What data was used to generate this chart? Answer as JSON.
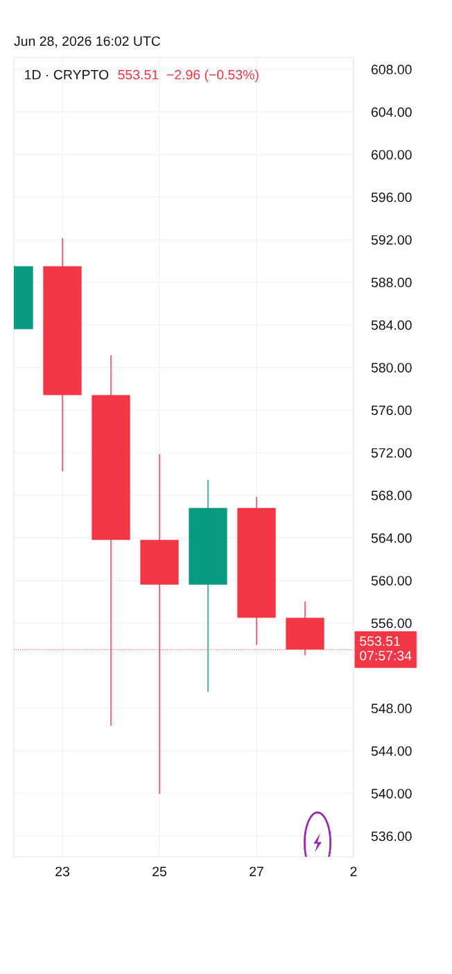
{
  "chart_data": {
    "type": "candlestick",
    "title": "1D · CRYPTO",
    "subtitle": "553.51  −2.96 (−0.53%)",
    "annotations": [
      "Jun 28, 2026 16:02 UTC"
    ],
    "categories": [
      null,
      "23",
      null,
      "25",
      null,
      "27",
      null,
      "2"
    ],
    "ohlc": [
      [
        583.6,
        589.5,
        583.6,
        589.5
      ],
      [
        589.5,
        592.1,
        570.3,
        577.4
      ],
      [
        577.4,
        581.1,
        546.4,
        563.8
      ],
      [
        563.8,
        571.8,
        540.0,
        559.6
      ],
      [
        559.6,
        569.4,
        549.6,
        566.8
      ],
      [
        566.8,
        567.8,
        554.0,
        556.5
      ],
      [
        556.5,
        558.0,
        553.0,
        553.51
      ],
      null
    ],
    "colors": [
      "#089981",
      "#f23645",
      "#f23645",
      "#f23645",
      "#089981",
      "#f23645",
      "#f23645",
      null
    ],
    "ylim": [
      534.05,
      609.1
    ],
    "yticks": [
      {
        "value": 536,
        "label": "536.00"
      },
      {
        "value": 540,
        "label": "540.00"
      },
      {
        "value": 544,
        "label": "544.00"
      },
      {
        "value": 548,
        "label": "548.00"
      },
      {
        "value": 556,
        "label": "556.00"
      },
      {
        "value": 560,
        "label": "560.00"
      },
      {
        "value": 564,
        "label": "564.00"
      },
      {
        "value": 568,
        "label": "568.00"
      },
      {
        "value": 572,
        "label": "572.00"
      },
      {
        "value": 576,
        "label": "576.00"
      },
      {
        "value": 580,
        "label": "580.00"
      },
      {
        "value": 584,
        "label": "584.00"
      },
      {
        "value": 588,
        "label": "588.00"
      },
      {
        "value": 592,
        "label": "592.00"
      },
      {
        "value": 596,
        "label": "596.00"
      },
      {
        "value": 600,
        "label": "600.00"
      },
      {
        "value": 604,
        "label": "604.00"
      },
      {
        "value": 608,
        "label": "608.00"
      }
    ],
    "ref_lines": [
      {
        "axis": "y",
        "value": 553.51,
        "label": "553.51\n07:57:34",
        "color": "#f23645",
        "line_style": "dotted"
      }
    ],
    "grid": true
  }
}
